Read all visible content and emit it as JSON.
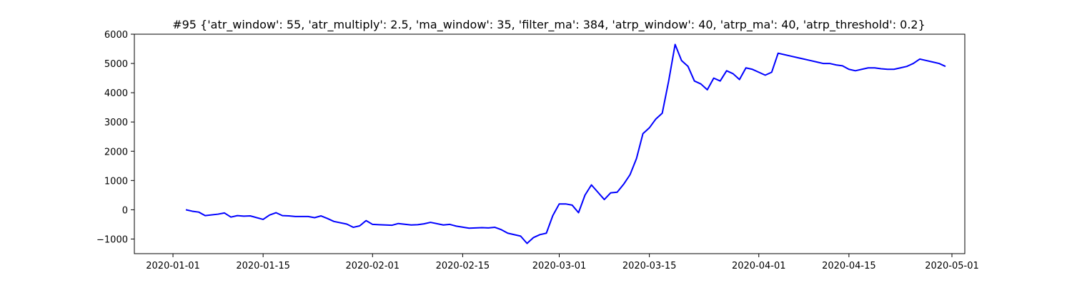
{
  "chart_data": {
    "type": "line",
    "title": "#95 {'atr_window': 55, 'atr_multiply': 2.5, 'ma_window': 35, 'filter_ma': 384, 'atrp_window': 40, 'atrp_ma': 40, 'atrp_threshold': 0.2}",
    "xlabel": "",
    "ylabel": "",
    "grid": false,
    "legend": "none",
    "xlim": [
      "2019-12-26",
      "2020-05-03"
    ],
    "ylim": [
      -1500,
      6000
    ],
    "x_ticks": [
      "2020-01-01",
      "2020-01-15",
      "2020-02-01",
      "2020-02-15",
      "2020-03-01",
      "2020-03-15",
      "2020-04-01",
      "2020-04-15",
      "2020-05-01"
    ],
    "y_ticks": [
      "-1000",
      "0",
      "1000",
      "2000",
      "3000",
      "4000",
      "5000",
      "6000"
    ],
    "series": [
      {
        "color": "#0000ff",
        "x": [
          "2020-01-03",
          "2020-01-04",
          "2020-01-05",
          "2020-01-06",
          "2020-01-08",
          "2020-01-09",
          "2020-01-10",
          "2020-01-11",
          "2020-01-12",
          "2020-01-13",
          "2020-01-15",
          "2020-01-16",
          "2020-01-17",
          "2020-01-18",
          "2020-01-19",
          "2020-01-20",
          "2020-01-22",
          "2020-01-23",
          "2020-01-24",
          "2020-01-25",
          "2020-01-26",
          "2020-01-28",
          "2020-01-29",
          "2020-01-30",
          "2020-01-31",
          "2020-02-01",
          "2020-02-02",
          "2020-02-04",
          "2020-02-05",
          "2020-02-07",
          "2020-02-08",
          "2020-02-09",
          "2020-02-10",
          "2020-02-12",
          "2020-02-13",
          "2020-02-14",
          "2020-02-16",
          "2020-02-18",
          "2020-02-19",
          "2020-02-20",
          "2020-02-21",
          "2020-02-22",
          "2020-02-24",
          "2020-02-25",
          "2020-02-26",
          "2020-02-27",
          "2020-02-28",
          "2020-02-29",
          "2020-03-01",
          "2020-03-02",
          "2020-03-03",
          "2020-03-04",
          "2020-03-05",
          "2020-03-06",
          "2020-03-07",
          "2020-03-08",
          "2020-03-09",
          "2020-03-10",
          "2020-03-11",
          "2020-03-12",
          "2020-03-13",
          "2020-03-14",
          "2020-03-15",
          "2020-03-16",
          "2020-03-17",
          "2020-03-18",
          "2020-03-19",
          "2020-03-20",
          "2020-03-21",
          "2020-03-22",
          "2020-03-23",
          "2020-03-24",
          "2020-03-25",
          "2020-03-26",
          "2020-03-27",
          "2020-03-28",
          "2020-03-29",
          "2020-03-30",
          "2020-03-31",
          "2020-04-01",
          "2020-04-02",
          "2020-04-03",
          "2020-04-04",
          "2020-04-05",
          "2020-04-06",
          "2020-04-07",
          "2020-04-08",
          "2020-04-09",
          "2020-04-10",
          "2020-04-11",
          "2020-04-12",
          "2020-04-13",
          "2020-04-14",
          "2020-04-15",
          "2020-04-16",
          "2020-04-17",
          "2020-04-18",
          "2020-04-19",
          "2020-04-20",
          "2020-04-21",
          "2020-04-22",
          "2020-04-23",
          "2020-04-24",
          "2020-04-25",
          "2020-04-26",
          "2020-04-27",
          "2020-04-28",
          "2020-04-29",
          "2020-04-30"
        ],
        "values": [
          0,
          -50,
          -80,
          -200,
          -150,
          -110,
          -250,
          -200,
          -220,
          -210,
          -330,
          -180,
          -100,
          -200,
          -210,
          -230,
          -230,
          -270,
          -210,
          -300,
          -400,
          -490,
          -600,
          -550,
          -370,
          -500,
          -510,
          -530,
          -470,
          -520,
          -510,
          -480,
          -430,
          -520,
          -500,
          -560,
          -630,
          -610,
          -620,
          -600,
          -680,
          -800,
          -900,
          -1150,
          -950,
          -850,
          -800,
          -200,
          200,
          200,
          160,
          -100,
          500,
          850,
          600,
          350,
          580,
          600,
          870,
          1200,
          1750,
          2600,
          2800,
          3100,
          3300,
          4400,
          5650,
          5100,
          4900,
          4400,
          4300,
          4100,
          4500,
          4400,
          4750,
          4650,
          4450,
          4850,
          4800,
          4700,
          4600,
          4700,
          5350,
          5300,
          5250,
          5200,
          5150,
          5100,
          5050,
          5000,
          5000,
          4950,
          4920,
          4800,
          4750,
          4800,
          4850,
          4850,
          4820,
          4800,
          4800,
          4850,
          4900,
          5000,
          5150,
          5100,
          5050,
          5000,
          4900
        ]
      }
    ]
  }
}
